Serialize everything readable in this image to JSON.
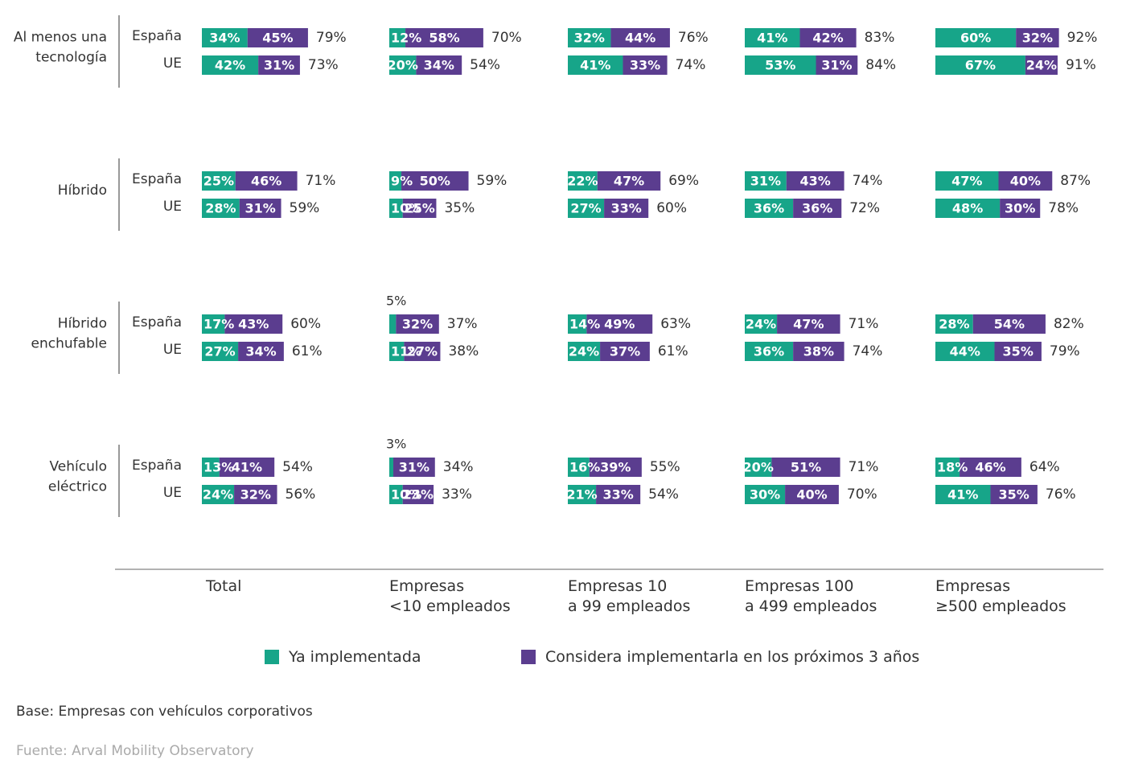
{
  "colors": {
    "implemented": "#17a589",
    "considering": "#5b3d8f",
    "axis": "#999999"
  },
  "legend": {
    "implemented": "Ya implementada",
    "considering": "Considera implementarla en los próximos 3 años"
  },
  "base_note": "Base: Empresas con vehículos corporativos",
  "source_note": "Fuente: Arval Mobility Observatory",
  "chart_data": {
    "type": "bar",
    "orientation": "horizontal",
    "stacked": true,
    "series": [
      {
        "name": "Ya implementada",
        "key": "implemented"
      },
      {
        "name": "Considera implementarla en los próximos 3 años",
        "key": "considering"
      }
    ],
    "columns": [
      {
        "label_lines": [
          "Total"
        ]
      },
      {
        "label_lines": [
          "Empresas",
          "<10 empleados"
        ]
      },
      {
        "label_lines": [
          "Empresas 10",
          "a 99 empleados"
        ]
      },
      {
        "label_lines": [
          "Empresas 100",
          "a 499 empleados"
        ]
      },
      {
        "label_lines": [
          "Empresas",
          "≥500 empleados"
        ]
      }
    ],
    "groups": [
      {
        "label_lines": [
          "Al menos una",
          "tecnología"
        ],
        "rows": [
          {
            "label": "España",
            "cells": [
              {
                "implemented": 34,
                "considering": 45,
                "total": 79
              },
              {
                "implemented": 12,
                "considering": 58,
                "total": 70
              },
              {
                "implemented": 32,
                "considering": 44,
                "total": 76
              },
              {
                "implemented": 41,
                "considering": 42,
                "total": 83
              },
              {
                "implemented": 60,
                "considering": 32,
                "total": 92
              }
            ]
          },
          {
            "label": "UE",
            "cells": [
              {
                "implemented": 42,
                "considering": 31,
                "total": 73
              },
              {
                "implemented": 20,
                "considering": 34,
                "total": 54
              },
              {
                "implemented": 41,
                "considering": 33,
                "total": 74
              },
              {
                "implemented": 53,
                "considering": 31,
                "total": 84
              },
              {
                "implemented": 67,
                "considering": 24,
                "total": 91
              }
            ]
          }
        ]
      },
      {
        "label_lines": [
          "Híbrido"
        ],
        "rows": [
          {
            "label": "España",
            "cells": [
              {
                "implemented": 25,
                "considering": 46,
                "total": 71
              },
              {
                "implemented": 9,
                "considering": 50,
                "total": 59
              },
              {
                "implemented": 22,
                "considering": 47,
                "total": 69
              },
              {
                "implemented": 31,
                "considering": 43,
                "total": 74
              },
              {
                "implemented": 47,
                "considering": 40,
                "total": 87
              }
            ]
          },
          {
            "label": "UE",
            "cells": [
              {
                "implemented": 28,
                "considering": 31,
                "total": 59
              },
              {
                "implemented": 10,
                "considering": 25,
                "total": 35
              },
              {
                "implemented": 27,
                "considering": 33,
                "total": 60
              },
              {
                "implemented": 36,
                "considering": 36,
                "total": 72
              },
              {
                "implemented": 48,
                "considering": 30,
                "total": 78
              }
            ]
          }
        ]
      },
      {
        "label_lines": [
          "Híbrido",
          "enchufable"
        ],
        "rows": [
          {
            "label": "España",
            "cells": [
              {
                "implemented": 17,
                "considering": 43,
                "total": 60
              },
              {
                "implemented": 5,
                "considering": 32,
                "total": 37
              },
              {
                "implemented": 14,
                "considering": 49,
                "total": 63
              },
              {
                "implemented": 24,
                "considering": 47,
                "total": 71
              },
              {
                "implemented": 28,
                "considering": 54,
                "total": 82
              }
            ]
          },
          {
            "label": "UE",
            "cells": [
              {
                "implemented": 27,
                "considering": 34,
                "total": 61
              },
              {
                "implemented": 11,
                "considering": 27,
                "total": 38
              },
              {
                "implemented": 24,
                "considering": 37,
                "total": 61
              },
              {
                "implemented": 36,
                "considering": 38,
                "total": 74
              },
              {
                "implemented": 44,
                "considering": 35,
                "total": 79
              }
            ]
          }
        ]
      },
      {
        "label_lines": [
          "Vehículo",
          "eléctrico"
        ],
        "rows": [
          {
            "label": "España",
            "cells": [
              {
                "implemented": 13,
                "considering": 41,
                "total": 54
              },
              {
                "implemented": 3,
                "considering": 31,
                "total": 34
              },
              {
                "implemented": 16,
                "considering": 39,
                "total": 55
              },
              {
                "implemented": 20,
                "considering": 51,
                "total": 71
              },
              {
                "implemented": 18,
                "considering": 46,
                "total": 64
              }
            ]
          },
          {
            "label": "UE",
            "cells": [
              {
                "implemented": 24,
                "considering": 32,
                "total": 56
              },
              {
                "implemented": 10,
                "considering": 23,
                "total": 33
              },
              {
                "implemented": 21,
                "considering": 33,
                "total": 54
              },
              {
                "implemented": 30,
                "considering": 40,
                "total": 70
              },
              {
                "implemented": 41,
                "considering": 35,
                "total": 76
              }
            ]
          }
        ]
      }
    ]
  }
}
